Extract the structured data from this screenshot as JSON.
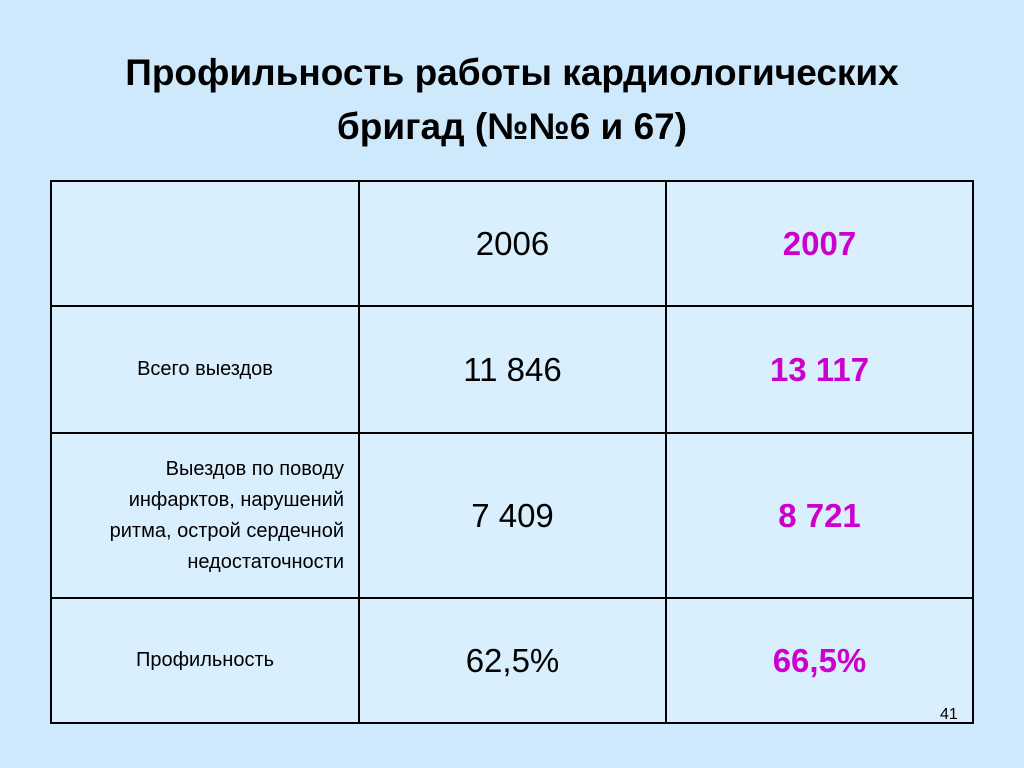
{
  "title_lines": [
    "Профильность работы кардиологических",
    "бригад (№№6 и 67)"
  ],
  "table": {
    "columns": [
      "2006",
      "2007"
    ],
    "rows": [
      {
        "label": "Всего выездов",
        "values": [
          "11 846",
          "13 117"
        ]
      },
      {
        "label": "Выездов по поводу инфарктов, нарушений ритма, острой сердечной недостаточности",
        "values": [
          "7 409",
          "8 721"
        ]
      },
      {
        "label": "Профильность",
        "values": [
          "62,5%",
          "66,5%"
        ]
      }
    ]
  },
  "page_number": "41"
}
